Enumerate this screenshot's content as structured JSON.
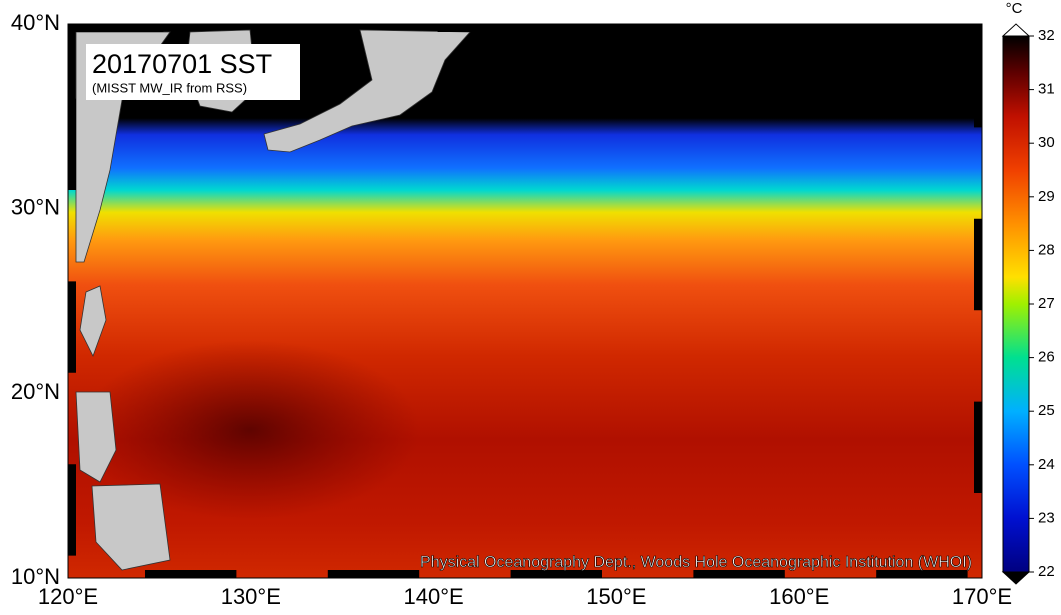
{
  "map": {
    "title": "20170701 SST",
    "subtitle": "(MISST MW_IR from RSS)",
    "credit": "Physical Oceanography Dept., Woods Hole Oceanographic Institution (WHOI)",
    "lat_labels": [
      "40°N",
      "30°N",
      "20°N",
      "10°N"
    ],
    "lon_labels": [
      "120°E",
      "130°E",
      "140°E",
      "150°E",
      "160°E",
      "170°E"
    ]
  },
  "colorbar": {
    "unit": "°C",
    "lim": [
      22,
      32
    ],
    "ticks": [
      22,
      23,
      24,
      25,
      26,
      27,
      28,
      29,
      30,
      31,
      32
    ]
  }
}
